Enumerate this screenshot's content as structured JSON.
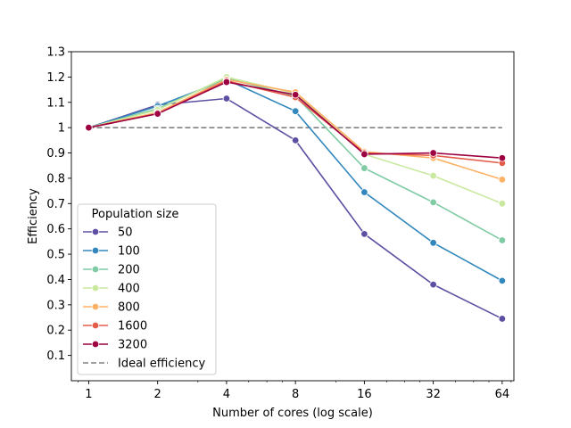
{
  "chart_data": {
    "type": "line",
    "title": "",
    "xlabel": "Number of cores (log scale)",
    "ylabel": "Efficiency",
    "x": [
      1,
      2,
      4,
      8,
      16,
      32,
      64
    ],
    "x_tick_labels": [
      "1",
      "2",
      "4",
      "8",
      "16",
      "32",
      "64"
    ],
    "x_scale": "log2",
    "xlim": [
      0.84,
      72
    ],
    "ylim": [
      0.0,
      1.3
    ],
    "y_ticks": [
      0.1,
      0.2,
      0.3,
      0.4,
      0.5,
      0.6,
      0.7,
      0.8,
      0.9,
      1,
      1.1,
      1.2,
      1.3
    ],
    "y_tick_labels": [
      "0.1",
      "0.2",
      "0.3",
      "0.4",
      "0.5",
      "0.6",
      "0.7",
      "0.8",
      "0.9",
      "1",
      "1.1",
      "1.2",
      "1.3"
    ],
    "grid": false,
    "legend_title": "Population size",
    "legend_position": "lower-left",
    "series": [
      {
        "name": "50",
        "color": "#5e4fa2",
        "values": [
          1.0,
          1.09,
          1.115,
          0.95,
          0.58,
          0.38,
          0.245
        ]
      },
      {
        "name": "100",
        "color": "#3288bd",
        "values": [
          1.0,
          1.085,
          1.19,
          1.065,
          0.745,
          0.545,
          0.395
        ]
      },
      {
        "name": "200",
        "color": "#7fcba4",
        "values": [
          1.0,
          1.075,
          1.195,
          1.125,
          0.84,
          0.705,
          0.555
        ]
      },
      {
        "name": "400",
        "color": "#c9e99e",
        "values": [
          1.0,
          1.07,
          1.2,
          1.135,
          0.895,
          0.81,
          0.7
        ]
      },
      {
        "name": "800",
        "color": "#fdb164",
        "values": [
          1.0,
          1.06,
          1.19,
          1.14,
          0.905,
          0.88,
          0.795
        ]
      },
      {
        "name": "1600",
        "color": "#e55b4a",
        "values": [
          1.0,
          1.055,
          1.185,
          1.12,
          0.9,
          0.89,
          0.86
        ]
      },
      {
        "name": "3200",
        "color": "#9e0142",
        "values": [
          1.0,
          1.055,
          1.18,
          1.13,
          0.895,
          0.9,
          0.88
        ]
      }
    ],
    "reference_line": {
      "name": "Ideal efficiency",
      "value": 1.0,
      "color": "#808080",
      "style": "dashed"
    }
  }
}
